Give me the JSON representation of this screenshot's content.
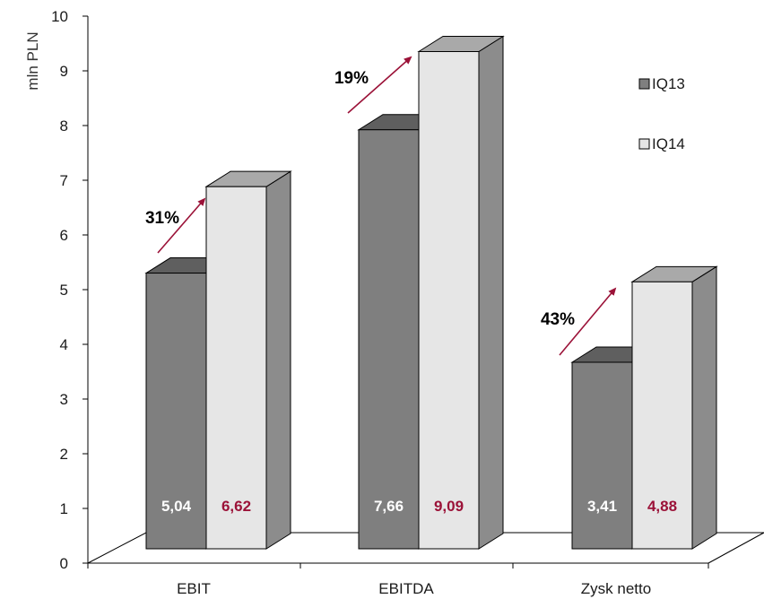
{
  "chart_data": {
    "type": "bar",
    "ylabel": "mln PLN",
    "xlabel": "",
    "title": "",
    "ylim": [
      0,
      10
    ],
    "yticks": [
      "0",
      "1",
      "2",
      "3",
      "4",
      "5",
      "6",
      "7",
      "8",
      "9",
      "10"
    ],
    "categories": [
      "EBIT",
      "EBITDA",
      "Zysk netto"
    ],
    "series": [
      {
        "name": "IQ13",
        "values": [
          5.04,
          7.66,
          3.41
        ],
        "labels": [
          "5,04",
          "7,66",
          "3,41"
        ],
        "color": "#7f7f7f",
        "label_color": "#ffffff"
      },
      {
        "name": "IQ14",
        "values": [
          6.62,
          9.09,
          4.88
        ],
        "labels": [
          "6,62",
          "9,09",
          "4,88"
        ],
        "color": "#e6e6e6",
        "label_color": "#9b1238"
      }
    ],
    "growth_labels": [
      "31%",
      "19%",
      "43%"
    ],
    "arrow_color": "#9b1238",
    "legend_position": "right",
    "style": "3d-columns",
    "grid": false
  }
}
